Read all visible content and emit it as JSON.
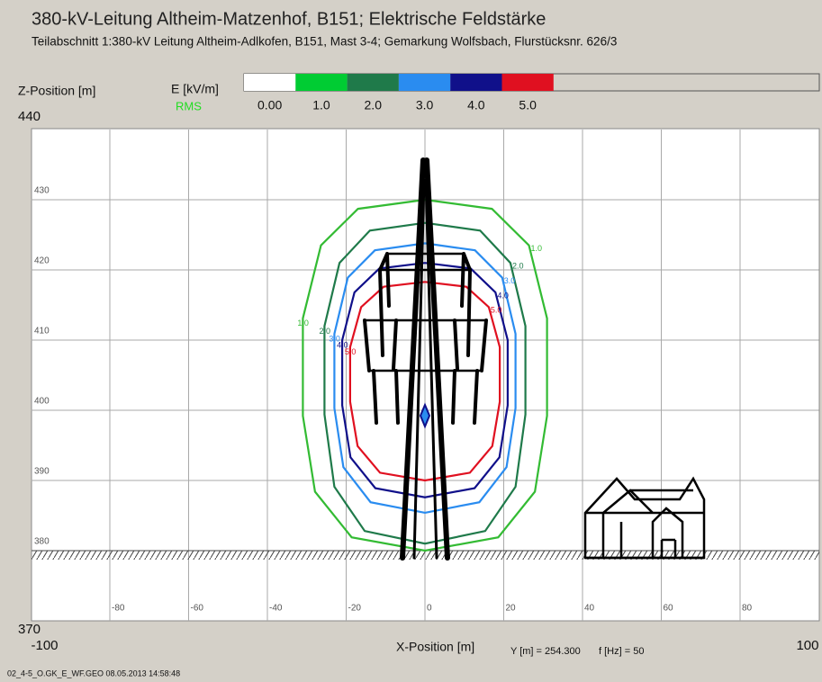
{
  "chart_data": {
    "type": "contour",
    "title": "380-kV-Leitung Altheim-Matzenhof, B151; Elektrische Feldstärke",
    "subtitle": "Teilabschnitt 1:380-kV Leitung Altheim-Adlkofen, B151, Mast 3-4; Gemarkung Wolfsbach, Flurstücksnr. 626/3",
    "y_label": "Z-Position [m]",
    "x_label": "X-Position [m]",
    "colorbar_title": "E [kV/m]",
    "colorbar_subtitle": "RMS",
    "colorbar": {
      "colors": [
        "#ffffff",
        "#00cc33",
        "#1f7a4a",
        "#2a8cf0",
        "#10108a",
        "#e01020"
      ],
      "ticks": [
        {
          "value": 0,
          "label": "0.00"
        },
        {
          "value": 1,
          "label": "1.0"
        },
        {
          "value": 2,
          "label": "2.0"
        },
        {
          "value": 3,
          "label": "3.0"
        },
        {
          "value": 4,
          "label": "4.0"
        },
        {
          "value": 5,
          "label": "5.0"
        }
      ]
    },
    "section_info": "Y [m] = 254.300",
    "frequency_info": "f [Hz] = 50",
    "footer": "02_4-5_O.GK_E_WF.GEO  08.05.2013 14:58:48",
    "xlim": [
      -100,
      100
    ],
    "ylim": [
      370,
      440
    ],
    "xticks": [
      -100,
      -80,
      -60,
      -40,
      -20,
      0,
      20,
      40,
      60,
      80,
      100
    ],
    "yticks": [
      370,
      380,
      390,
      400,
      410,
      420,
      430,
      440
    ],
    "grid": true,
    "series": [
      {
        "label": "1.0",
        "color": "#33bb33",
        "x": [
          0,
          17,
          26.4,
          31,
          31,
          27.9,
          18.6,
          0,
          -18.6,
          -27.9,
          -31,
          -31,
          -26.4,
          -17,
          0
        ],
        "y": [
          430,
          428.7,
          423.5,
          413.1,
          399.2,
          388.4,
          381.9,
          380,
          381.9,
          388.4,
          399.2,
          413.1,
          423.5,
          428.7,
          430
        ]
      },
      {
        "label": "2.0",
        "color": "#1f7a4a",
        "x": [
          0,
          14,
          21.7,
          25.5,
          25.5,
          23,
          15.3,
          0,
          -15.3,
          -23,
          -25.5,
          -25.5,
          -21.7,
          -14,
          0
        ],
        "y": [
          426.7,
          425.6,
          421,
          412,
          399.4,
          389.1,
          382.8,
          381,
          382.8,
          389.1,
          399.4,
          412,
          421,
          425.6,
          426.7
        ]
      },
      {
        "label": "3.0",
        "color": "#2a8cf0",
        "x": [
          0,
          12.7,
          19.6,
          23,
          23,
          20.7,
          13.8,
          0,
          -13.8,
          -20.7,
          -23,
          -23,
          -19.6,
          -12.7,
          0
        ],
        "y": [
          423.8,
          422.8,
          418.9,
          410.9,
          400.3,
          391.9,
          386.9,
          385.4,
          386.9,
          391.9,
          400.3,
          410.9,
          418.9,
          422.8,
          423.8
        ]
      },
      {
        "label": "4.0",
        "color": "#10108a",
        "x": [
          0,
          11.6,
          17.9,
          21,
          21,
          18.9,
          12.6,
          0,
          -12.6,
          -18.9,
          -21,
          -21,
          -17.9,
          -11.6,
          0
        ],
        "y": [
          421,
          420.2,
          416.8,
          410,
          400.7,
          393.3,
          388.9,
          387.6,
          388.9,
          393.3,
          400.7,
          410,
          416.8,
          420.2,
          421
        ]
      },
      {
        "label": "5.0",
        "color": "#e01020",
        "x": [
          0,
          10.5,
          16.2,
          19,
          19,
          17.1,
          11.4,
          0,
          -11.4,
          -17.1,
          -19,
          -19,
          -16.2,
          -10.5,
          0
        ],
        "y": [
          418.3,
          417.6,
          414.7,
          409,
          401.2,
          394.9,
          391.1,
          390,
          391.1,
          394.9,
          401.2,
          409,
          414.7,
          417.6,
          418.3
        ]
      }
    ]
  }
}
